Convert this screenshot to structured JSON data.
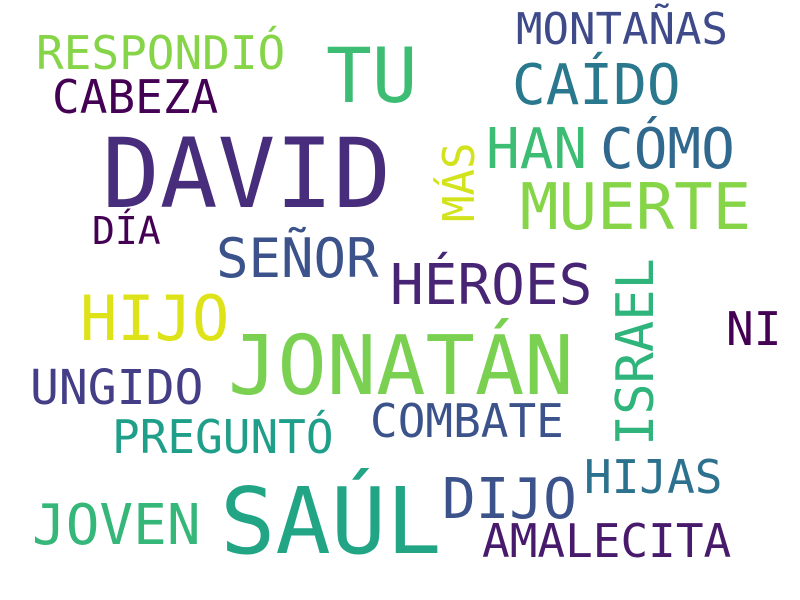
{
  "words": [
    {
      "text": "DAVID",
      "color": "#472d7b"
    },
    {
      "text": "JONATÁN",
      "color": "#7ad151"
    },
    {
      "text": "SAÚL",
      "color": "#21a585"
    },
    {
      "text": "TU",
      "color": "#3dbc74"
    },
    {
      "text": "MUERTE",
      "color": "#86d549"
    },
    {
      "text": "HIJO",
      "color": "#dde318"
    },
    {
      "text": "ISRAEL",
      "color": "#2fb47c"
    },
    {
      "text": "HÉROES",
      "color": "#482475"
    },
    {
      "text": "SEÑOR",
      "color": "#3b528b"
    },
    {
      "text": "HAN",
      "color": "#3dbc74"
    },
    {
      "text": "CÓMO",
      "color": "#31688e"
    },
    {
      "text": "CAÍDO",
      "color": "#2a788e"
    },
    {
      "text": "MONTAÑAS",
      "color": "#3e4a89"
    },
    {
      "text": "RESPONDIÓ",
      "color": "#86d549"
    },
    {
      "text": "CABEZA",
      "color": "#440154"
    },
    {
      "text": "MÁS",
      "color": "#d2e21b"
    },
    {
      "text": "DÍA",
      "color": "#440154"
    },
    {
      "text": "NI",
      "color": "#440154"
    },
    {
      "text": "UNGIDO",
      "color": "#433e85"
    },
    {
      "text": "PREGUNTÓ",
      "color": "#1f9e89"
    },
    {
      "text": "COMBATE",
      "color": "#3b528b"
    },
    {
      "text": "DIJO",
      "color": "#3b528b"
    },
    {
      "text": "HIJAS",
      "color": "#2c718e"
    },
    {
      "text": "JOVEN",
      "color": "#35b779"
    },
    {
      "text": "AMALECITA",
      "color": "#481a6c"
    }
  ]
}
